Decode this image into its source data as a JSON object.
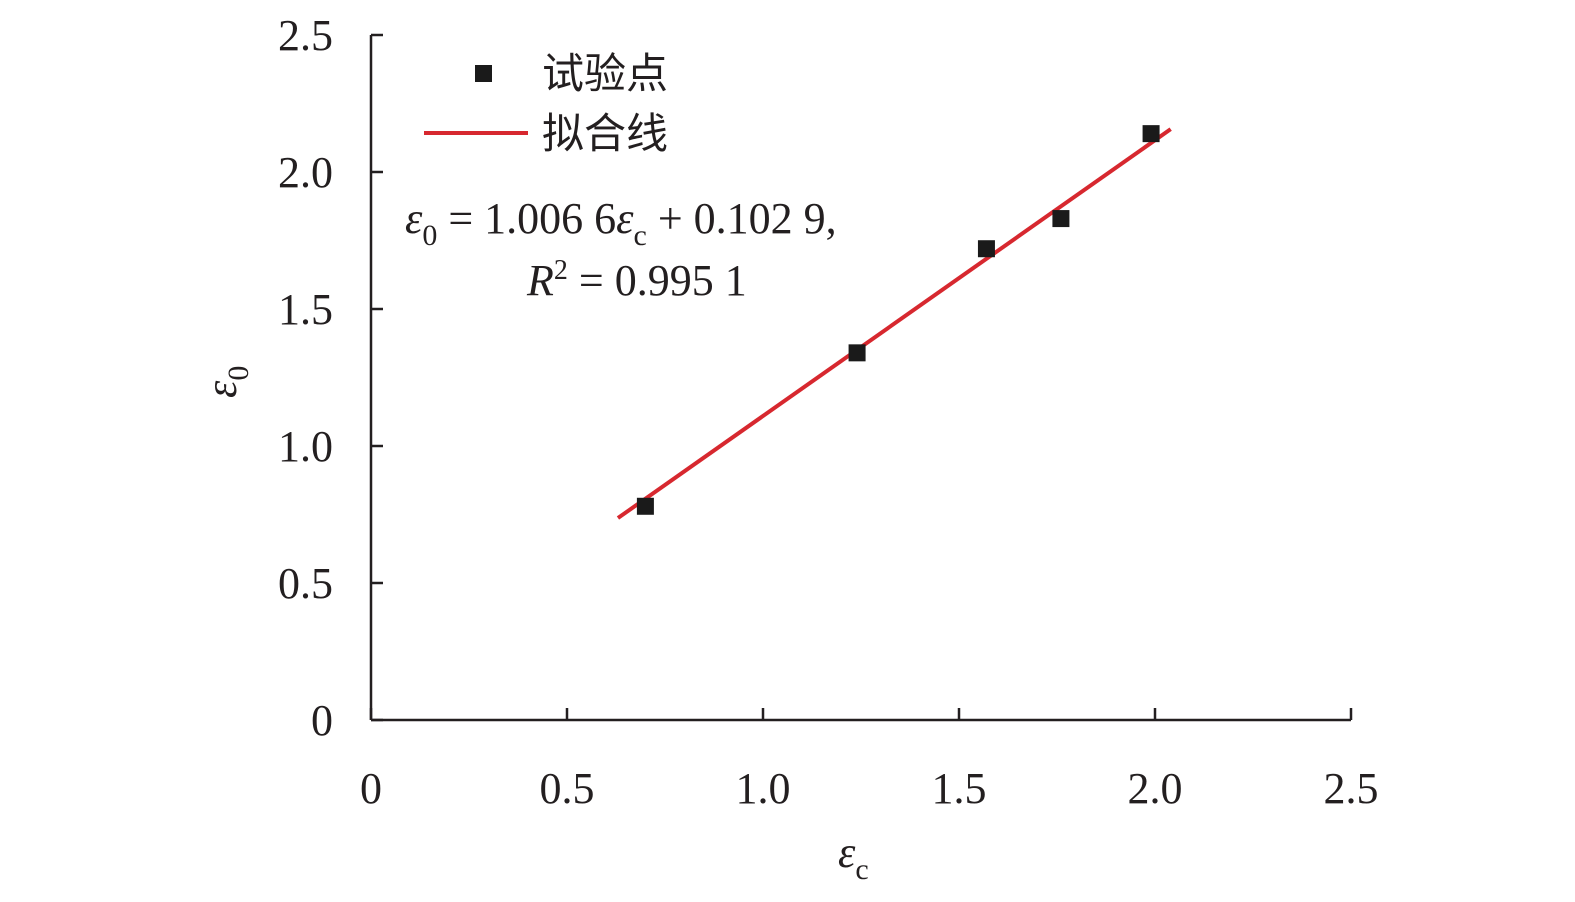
{
  "chart_data": {
    "type": "scatter",
    "xlabel": {
      "symbol": "ε",
      "sub": "c"
    },
    "ylabel": {
      "symbol": "ε",
      "sub": "0"
    },
    "xlim": [
      0,
      2.5
    ],
    "ylim": [
      0,
      2.5
    ],
    "x_ticks": [
      0,
      0.5,
      1.0,
      1.5,
      2.0,
      2.5
    ],
    "y_ticks": [
      0,
      0.5,
      1.0,
      1.5,
      2.0,
      2.5
    ],
    "x_tick_labels": [
      "0",
      "0.5",
      "1.0",
      "1.5",
      "2.0",
      "2.5"
    ],
    "y_tick_labels": [
      "0",
      "0.5",
      "1.0",
      "1.5",
      "2.0",
      "2.5"
    ],
    "grid": false,
    "legend_position": "top-left",
    "series": [
      {
        "name": "试验点",
        "kind": "scatter",
        "marker": "square",
        "color": "#1a1a1a",
        "x": [
          0.7,
          1.24,
          1.57,
          1.76,
          1.99
        ],
        "y": [
          0.78,
          1.34,
          1.72,
          1.83,
          2.14
        ]
      },
      {
        "name": "拟合线",
        "kind": "line",
        "color": "#d7282f",
        "x": [
          0.63,
          2.04
        ],
        "slope": 1.0066,
        "intercept": 0.1029
      }
    ],
    "annotation": {
      "line1": {
        "lhs_symbol": "ε",
        "lhs_sub": "0",
        "middle": " = 1.006 6",
        "rhs_symbol": "ε",
        "rhs_sub": "c",
        "tail": " + 0.102 9,"
      },
      "line2": {
        "symbol": "R",
        "sup": "2",
        "tail": " = 0.995 1"
      }
    }
  }
}
